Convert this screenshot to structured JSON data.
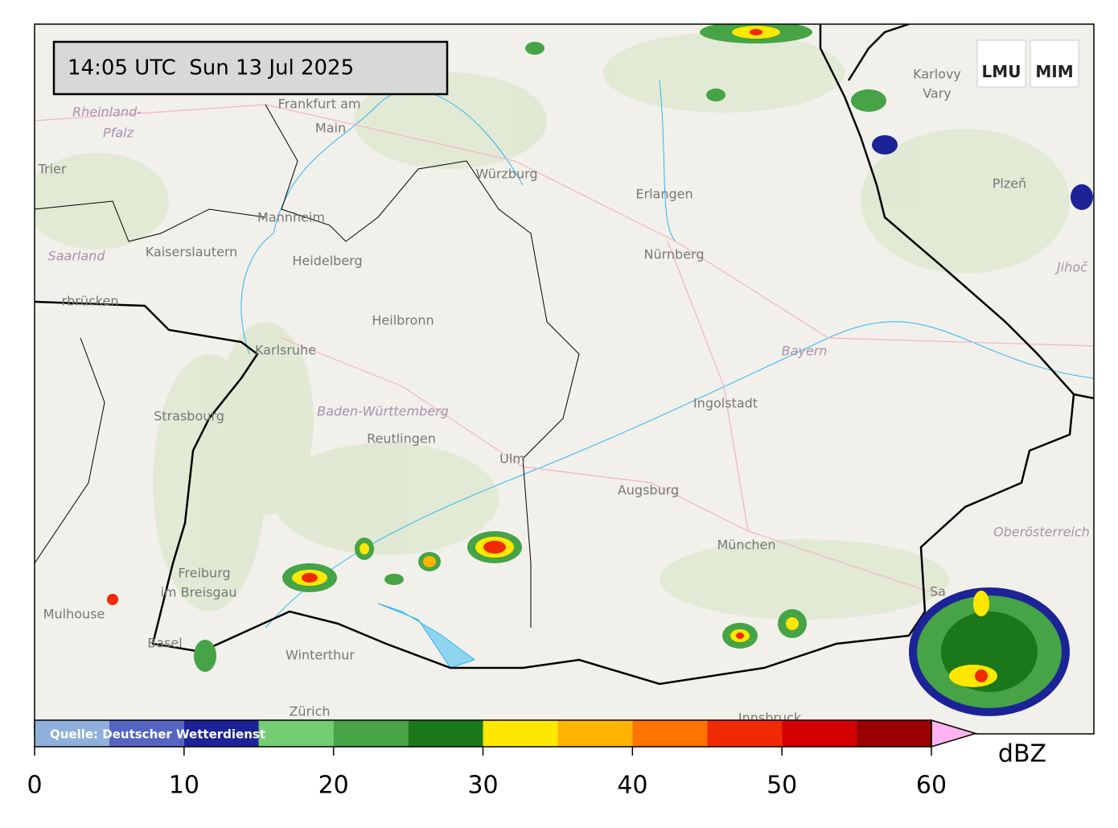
{
  "timestamp": "14:05 UTC  Sun 13 Jul 2025",
  "logos": [
    "LMU",
    "MIM"
  ],
  "source": "Quelle: Deutscher Wetterdienst",
  "map": {
    "labels": [
      "Frankfurt am",
      "Main",
      "Rheinland-",
      "Pfalz",
      "Trier",
      "Würzburg",
      "Erlangen",
      "Nürnberg",
      "Mannheim",
      "Kaiserslautern",
      "Heidelberg",
      "Saarland",
      "rbrücken",
      "Heilbronn",
      "Karlsruhe",
      "Strasbourg",
      "Baden-Württemberg",
      "Reutlingen",
      "Ulm",
      "Ingolstadt",
      "Bayern",
      "Augsburg",
      "München",
      "Freiburg",
      "im Breisgau",
      "Mulhouse",
      "Basel",
      "Winterthur",
      "Zürich",
      "Innsbruck",
      "Sa",
      "Oberösterreich",
      "Karlovy",
      "Vary",
      "Plzeň",
      "Jihoč"
    ]
  },
  "colorbar": {
    "bounds": [
      0,
      5,
      10,
      15,
      20,
      25,
      30,
      35,
      40,
      45,
      50,
      55,
      60
    ],
    "colors": [
      "#8fb0dc",
      "#5466c0",
      "#1c2396",
      "#74cc74",
      "#46a346",
      "#1a781a",
      "#ffe800",
      "#ffb400",
      "#ff7300",
      "#f02a00",
      "#d40000",
      "#9a0000"
    ],
    "over_color": "#ffb3f0",
    "ticks": [
      0,
      10,
      20,
      30,
      40,
      50,
      60
    ],
    "label": "dBZ"
  }
}
